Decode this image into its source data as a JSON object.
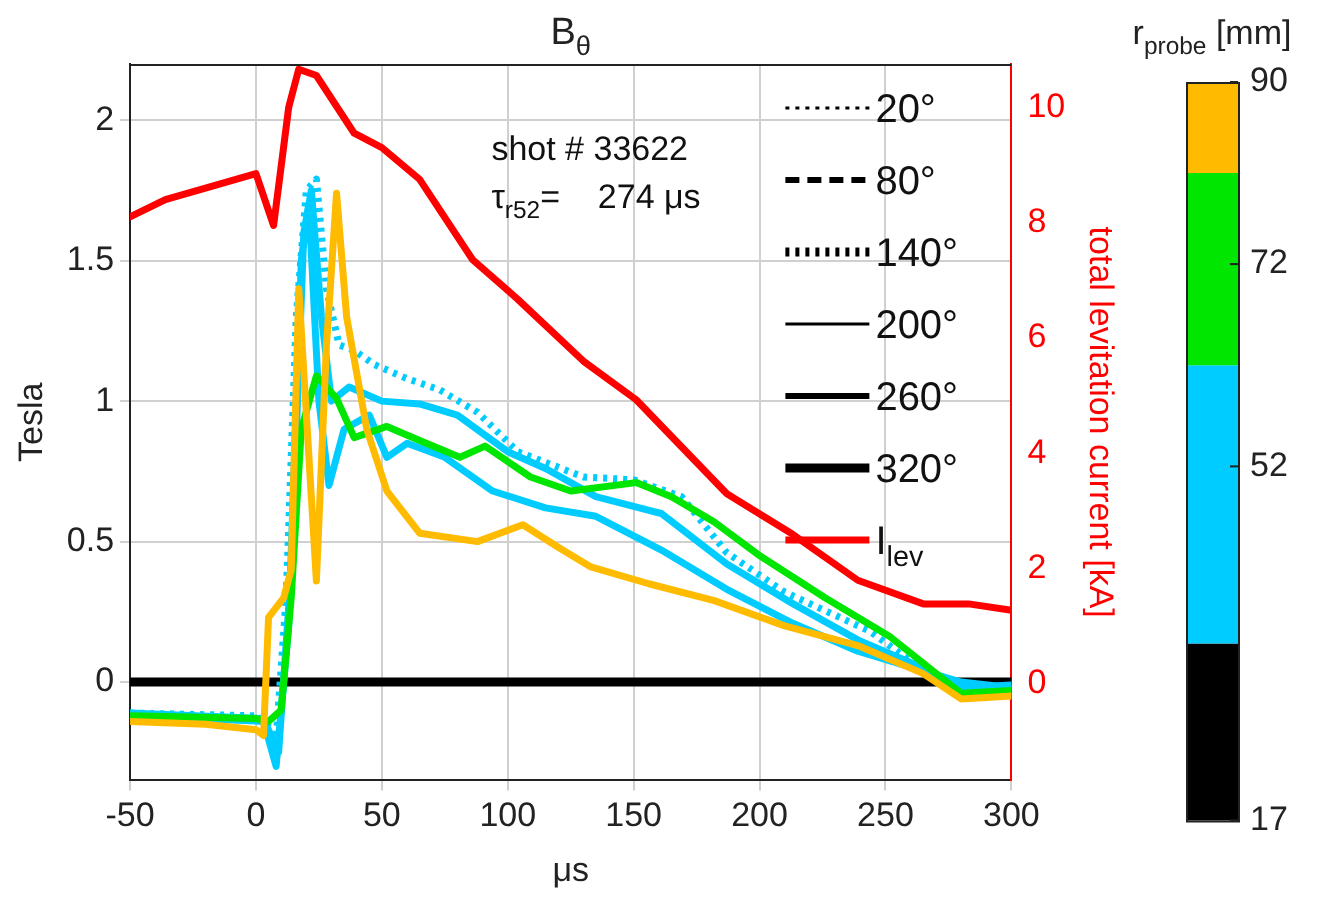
{
  "chart_data": {
    "type": "line",
    "title": "B$_{θ}$",
    "xlabel": "μs",
    "ylabel": "Tesla",
    "y2label": "total levitation current [kA]",
    "clabel": "r$_{probe}$ [mm]",
    "annotations": [
      "shot # 33622",
      "τ$_{r52}$=    274 μs",
      "20°",
      "80°",
      "140°",
      "200°",
      "260°"
    ],
    "xlim": [
      -50,
      300
    ],
    "xticks": [
      -50,
      0,
      50,
      100,
      150,
      200,
      250,
      300
    ],
    "ylim": [
      -0.35,
      2.2
    ],
    "yticks": [
      0,
      0.5,
      1,
      1.5,
      2
    ],
    "y2lim": [
      -1.67,
      10.75
    ],
    "y2ticks": [
      0,
      2,
      4,
      6,
      8,
      10
    ],
    "clim": [
      17,
      90
    ],
    "cticks": [
      17,
      52,
      72,
      90
    ],
    "colors": [
      "#000000",
      "#00ccff",
      "#00e600",
      "#ffbb00"
    ],
    "grid": true,
    "legend": "top right",
    "series": [
      {
        "name": "320°",
        "color": "#000000",
        "line_style": "solid",
        "x": [
          -50,
          300
        ],
        "values": [
          0,
          0
        ]
      },
      {
        "color": "#00ccff",
        "line_style": "dotted",
        "x": [
          -50,
          0,
          3,
          8,
          12,
          16,
          20,
          24,
          28,
          33,
          39,
          47,
          60,
          73,
          88,
          104,
          130,
          150,
          169,
          187,
          210,
          244,
          265,
          280,
          300
        ],
        "values": [
          -0.11,
          -0.12,
          -0.13,
          -0.2,
          0.3,
          1.3,
          1.75,
          1.79,
          1.4,
          1.2,
          1.18,
          1.13,
          1.08,
          1.04,
          0.96,
          0.82,
          0.73,
          0.72,
          0.66,
          0.46,
          0.32,
          0.18,
          0.04,
          -0.02,
          -0.02
        ]
      },
      {
        "color": "#00ccff",
        "x": [
          -50,
          3,
          9,
          14,
          19,
          22,
          26,
          30,
          37,
          50,
          65,
          80,
          100,
          115,
          135,
          161,
          187,
          213,
          239,
          265,
          280,
          300
        ],
        "values": [
          -0.11,
          -0.13,
          -0.25,
          0.4,
          1.6,
          1.75,
          1.3,
          1.0,
          1.05,
          1.0,
          0.99,
          0.95,
          0.82,
          0.76,
          0.66,
          0.6,
          0.42,
          0.28,
          0.15,
          0.05,
          -0.02,
          -0.01
        ]
      },
      {
        "color": "#00ccff",
        "x": [
          -50,
          3,
          8,
          13,
          18,
          21,
          25,
          29,
          35,
          45,
          52,
          60,
          75,
          94,
          115,
          135,
          161,
          187,
          213,
          239,
          265,
          280,
          300
        ],
        "values": [
          -0.12,
          -0.14,
          -0.3,
          0.2,
          1.5,
          1.7,
          1.0,
          0.7,
          0.9,
          0.95,
          0.8,
          0.85,
          0.8,
          0.68,
          0.62,
          0.59,
          0.47,
          0.33,
          0.21,
          0.11,
          0.04,
          0.0,
          -0.02
        ]
      },
      {
        "color": "#00e600",
        "x": [
          -50,
          0,
          5,
          10,
          14,
          18,
          24,
          32,
          39,
          52,
          65,
          81,
          91,
          109,
          125,
          151,
          165,
          182,
          200,
          226,
          252,
          273,
          280,
          300
        ],
        "values": [
          -0.12,
          -0.13,
          -0.14,
          -0.1,
          0.3,
          0.9,
          1.09,
          1.01,
          0.87,
          0.91,
          0.86,
          0.8,
          0.84,
          0.73,
          0.68,
          0.71,
          0.66,
          0.57,
          0.45,
          0.3,
          0.16,
          0.01,
          -0.04,
          -0.03
        ]
      },
      {
        "color": "#ffbb00",
        "x": [
          -50,
          -20,
          0,
          3,
          5,
          11,
          14,
          17,
          24,
          28,
          32,
          36,
          44,
          52,
          65,
          88,
          106,
          120,
          133,
          156,
          182,
          210,
          239,
          265,
          280,
          300
        ],
        "values": [
          -0.14,
          -0.15,
          -0.17,
          -0.19,
          0.23,
          0.3,
          0.4,
          1.4,
          0.36,
          1.2,
          1.74,
          1.3,
          0.9,
          0.68,
          0.53,
          0.5,
          0.56,
          0.48,
          0.41,
          0.35,
          0.29,
          0.2,
          0.13,
          0.03,
          -0.06,
          -0.05
        ]
      },
      {
        "name": "I$_{lev}$",
        "color": "#ff0000",
        "axis": "y2",
        "x": [
          -50,
          -36,
          0,
          7,
          13,
          17,
          24,
          39,
          50,
          65,
          86,
          104,
          130,
          151,
          164,
          187,
          213,
          239,
          265,
          283,
          300
        ],
        "values": [
          8.1,
          8.4,
          8.85,
          7.95,
          10.0,
          10.66,
          10.55,
          9.55,
          9.3,
          8.75,
          7.36,
          6.67,
          5.6,
          4.93,
          4.34,
          3.3,
          2.6,
          1.8,
          1.39,
          1.39,
          1.28
        ]
      }
    ]
  }
}
